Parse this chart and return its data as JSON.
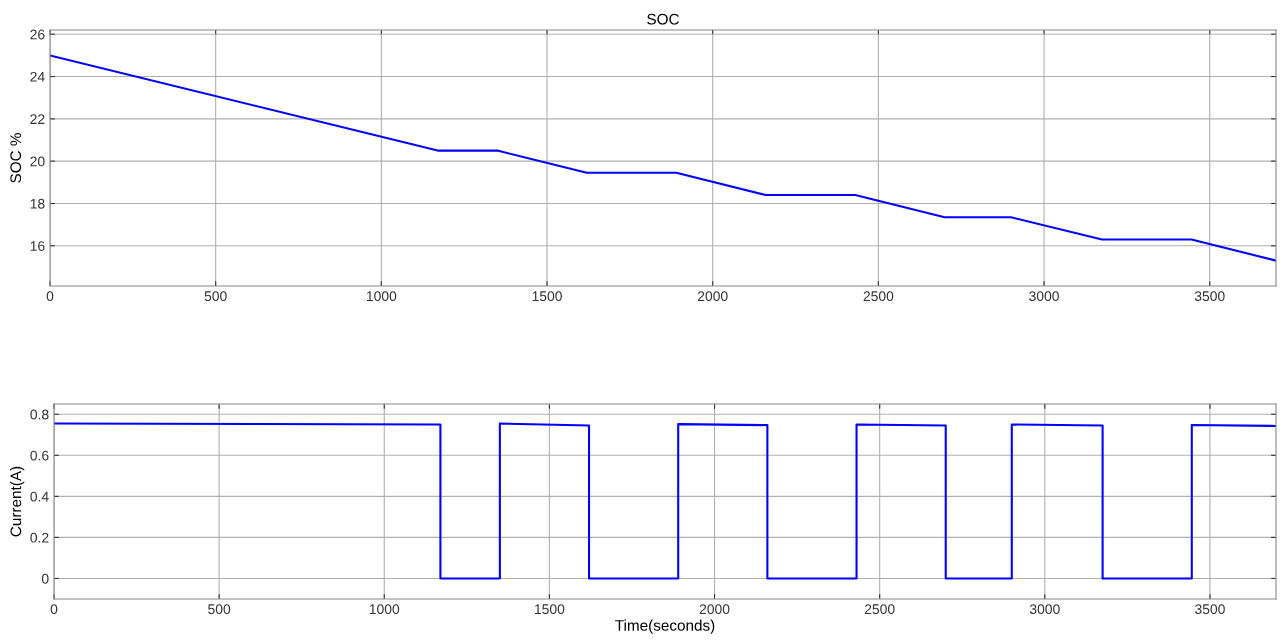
{
  "chart_data": [
    {
      "type": "line",
      "title": "SOC",
      "ylabel": "SOC %",
      "xlim": [
        0,
        3700
      ],
      "xticks": [
        0,
        500,
        1000,
        1500,
        2000,
        2500,
        3000,
        3500
      ],
      "ylim": [
        14.1,
        26.2
      ],
      "yticks": [
        16,
        18,
        20,
        22,
        24,
        26
      ],
      "grid": true,
      "series": [
        {
          "color": "#0000ff",
          "x": [
            0,
            1170,
            1350,
            1620,
            1890,
            2160,
            2430,
            2700,
            2900,
            3175,
            3445,
            3700
          ],
          "values": [
            25,
            20.5,
            20.5,
            19.45,
            19.45,
            18.4,
            18.4,
            17.35,
            17.35,
            16.3,
            16.3,
            15.3
          ]
        }
      ]
    },
    {
      "type": "line",
      "xlabel": "Time(seconds)",
      "ylabel": "Current(A)",
      "xlim": [
        0,
        3700
      ],
      "xticks": [
        0,
        500,
        1000,
        1500,
        2000,
        2500,
        3000,
        3500
      ],
      "ylim": [
        -0.1,
        0.85
      ],
      "yticks": [
        0,
        0.2,
        0.4,
        0.6,
        0.8
      ],
      "grid": true,
      "series": [
        {
          "color": "#0000ff",
          "x": [
            0,
            1170,
            1170,
            1350,
            1350,
            1620,
            1620,
            1890,
            1890,
            2160,
            2160,
            2430,
            2430,
            2700,
            2700,
            2900,
            2900,
            3175,
            3175,
            3445,
            3445,
            3700
          ],
          "values": [
            0.755,
            0.75,
            0,
            0,
            0.755,
            0.745,
            0,
            0,
            0.752,
            0.747,
            0,
            0,
            0.75,
            0.745,
            0,
            0,
            0.75,
            0.745,
            0,
            0,
            0.748,
            0.743
          ]
        }
      ]
    }
  ]
}
